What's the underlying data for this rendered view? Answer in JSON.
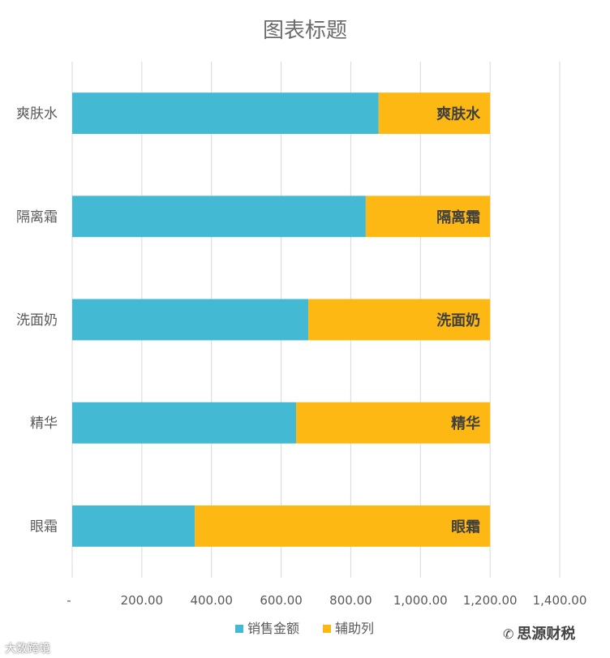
{
  "chart_data": {
    "type": "bar",
    "orientation": "horizontal",
    "stacked": true,
    "title": "图表标题",
    "categories": [
      "爽肤水",
      "隔离霜",
      "洗面奶",
      "精华",
      "眼霜"
    ],
    "series": [
      {
        "name": "销售金额",
        "color": "#43b9d3",
        "values": [
          880,
          843,
          678,
          643,
          352
        ]
      },
      {
        "name": "辅助列",
        "color": "#fdb813",
        "values": [
          320,
          357,
          522,
          557,
          848
        ]
      }
    ],
    "data_labels": [
      "爽肤水",
      "隔离霜",
      "洗面奶",
      "精华",
      "眼霜"
    ],
    "x_ticks": [
      "-",
      "200.00",
      "400.00",
      "600.00",
      "800.00",
      "1,000.00",
      "1,200.00",
      "1,400.00"
    ],
    "xlim": [
      0,
      1400
    ],
    "grid": true,
    "legend_position": "bottom"
  },
  "watermarks": {
    "left": "大数跨境",
    "right": "思源财税",
    "right_icon": "wechat-icon"
  }
}
